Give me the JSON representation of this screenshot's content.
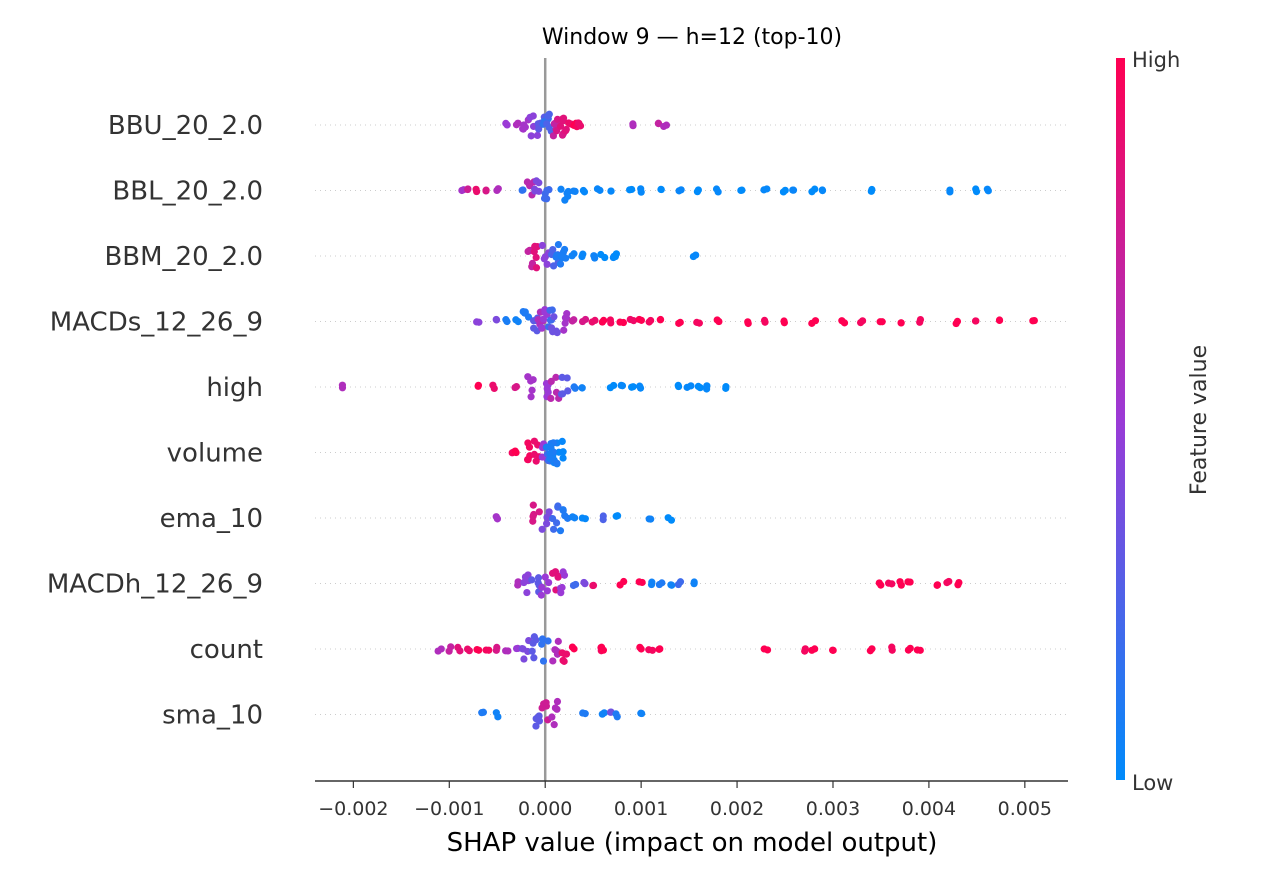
{
  "chart_data": {
    "type": "scatter",
    "subtype": "shap-beeswarm",
    "title": "Window 9 — h=12 (top-10)",
    "xlabel": "SHAP value (impact on model output)",
    "xlim": [
      -0.0024,
      0.00545
    ],
    "x_ticks": [
      -0.002,
      -0.001,
      0.0,
      0.001,
      0.002,
      0.003,
      0.004,
      0.005
    ],
    "x_tick_labels": [
      "−0.002",
      "−0.001",
      "0.000",
      "0.001",
      "0.002",
      "0.003",
      "0.004",
      "0.005"
    ],
    "zero_line": 0.0,
    "grid": false,
    "colorbar": {
      "label": "Feature value",
      "high_label": "High",
      "low_label": "Low",
      "low_color": "#008bfb",
      "high_color": "#ff0052"
    },
    "features": [
      {
        "name": "BBU_20_2.0",
        "spread": 0.7,
        "points": [
          [
            -0.0004,
            0.5
          ],
          [
            -0.0003,
            0.6
          ],
          [
            -0.0002,
            0.55
          ],
          [
            -0.00012,
            0.45
          ],
          [
            -5e-05,
            0.3
          ],
          [
            0.0,
            0.15
          ],
          [
            5e-05,
            0.25
          ],
          [
            0.0001,
            0.7
          ],
          [
            0.00015,
            0.8
          ],
          [
            0.0002,
            0.85
          ],
          [
            0.00025,
            0.9
          ],
          [
            0.0003,
            1.0
          ],
          [
            0.00032,
            1.0
          ],
          [
            0.00034,
            0.95
          ],
          [
            0.00036,
            0.9
          ],
          [
            0.0009,
            0.6
          ],
          [
            0.0012,
            0.7
          ],
          [
            0.00125,
            0.6
          ]
        ]
      },
      {
        "name": "BBL_20_2.0",
        "spread": 0.6,
        "points": [
          [
            -0.00085,
            0.55
          ],
          [
            -0.0008,
            0.75
          ],
          [
            -0.0007,
            0.9
          ],
          [
            -0.0006,
            0.8
          ],
          [
            -0.0005,
            0.6
          ],
          [
            -0.00025,
            0.15
          ],
          [
            -0.00015,
            0.65
          ],
          [
            -0.0001,
            0.4
          ],
          [
            0.0,
            0.2
          ],
          [
            0.0002,
            0.05
          ],
          [
            0.0003,
            0.05
          ],
          [
            0.0004,
            0.02
          ],
          [
            0.00055,
            0.03
          ],
          [
            0.0007,
            0.02
          ],
          [
            0.0009,
            0.0
          ],
          [
            0.001,
            0.02
          ],
          [
            0.0012,
            0.0
          ],
          [
            0.0014,
            0.03
          ],
          [
            0.0016,
            0.0
          ],
          [
            0.0018,
            0.02
          ],
          [
            0.00205,
            0.0
          ],
          [
            0.0023,
            0.02
          ],
          [
            0.0025,
            0.0
          ],
          [
            0.0026,
            0.03
          ],
          [
            0.0028,
            0.0
          ],
          [
            0.0029,
            0.02
          ],
          [
            0.0034,
            0.0
          ],
          [
            0.0042,
            0.02
          ],
          [
            0.0045,
            0.0
          ],
          [
            0.0046,
            0.02
          ]
        ]
      },
      {
        "name": "BBM_20_2.0",
        "spread": 0.75,
        "points": [
          [
            -0.00015,
            0.7
          ],
          [
            -0.0001,
            0.85
          ],
          [
            0.0,
            0.45
          ],
          [
            0.0001,
            0.25
          ],
          [
            0.00015,
            0.1
          ],
          [
            0.0002,
            0.08
          ],
          [
            0.0003,
            0.05
          ],
          [
            0.0004,
            0.03
          ],
          [
            0.0005,
            0.05
          ],
          [
            0.0006,
            0.0
          ],
          [
            0.0007,
            0.02
          ],
          [
            0.00075,
            0.0
          ],
          [
            0.00155,
            0.02
          ]
        ]
      },
      {
        "name": "MACDs_12_26_9",
        "spread": 0.7,
        "points": [
          [
            -0.0007,
            0.45
          ],
          [
            -0.0005,
            0.4
          ],
          [
            -0.0004,
            0.08
          ],
          [
            -0.0003,
            0.05
          ],
          [
            -0.0002,
            0.1
          ],
          [
            -0.0001,
            0.3
          ],
          [
            -5e-05,
            0.6
          ],
          [
            0.0,
            0.5
          ],
          [
            5e-05,
            0.2
          ],
          [
            0.0001,
            0.35
          ],
          [
            0.0002,
            0.55
          ],
          [
            0.0003,
            0.7
          ],
          [
            0.0004,
            0.8
          ],
          [
            0.0005,
            0.9
          ],
          [
            0.0006,
            1.0
          ],
          [
            0.0007,
            0.95
          ],
          [
            0.0008,
            1.0
          ],
          [
            0.0009,
            0.92
          ],
          [
            0.001,
            1.0
          ],
          [
            0.0011,
            0.95
          ],
          [
            0.0012,
            1.0
          ],
          [
            0.0014,
            1.0
          ],
          [
            0.0016,
            0.95
          ],
          [
            0.0018,
            1.0
          ],
          [
            0.0021,
            1.0
          ],
          [
            0.0023,
            0.95
          ],
          [
            0.0025,
            1.0
          ],
          [
            0.0028,
            1.0
          ],
          [
            0.0031,
            1.0
          ],
          [
            0.0033,
            0.95
          ],
          [
            0.0035,
            1.0
          ],
          [
            0.0037,
            1.0
          ],
          [
            0.0039,
            0.95
          ],
          [
            0.0043,
            1.0
          ],
          [
            0.0045,
            0.95
          ],
          [
            0.00475,
            1.0
          ],
          [
            0.0051,
            1.0
          ]
        ]
      },
      {
        "name": "high",
        "spread": 0.7,
        "points": [
          [
            -0.0021,
            0.6
          ],
          [
            -0.0007,
            1.0
          ],
          [
            -0.00055,
            0.9
          ],
          [
            -0.0003,
            0.8
          ],
          [
            -0.00015,
            0.55
          ],
          [
            0.0,
            0.5
          ],
          [
            0.0001,
            0.65
          ],
          [
            0.0002,
            0.3
          ],
          [
            0.0003,
            0.1
          ],
          [
            0.0004,
            0.05
          ],
          [
            0.0007,
            0.0
          ],
          [
            0.0008,
            0.02
          ],
          [
            0.0009,
            0.0
          ],
          [
            0.001,
            0.02
          ],
          [
            0.0014,
            0.0
          ],
          [
            0.0015,
            0.02
          ],
          [
            0.0016,
            0.0
          ],
          [
            0.0017,
            0.02
          ],
          [
            0.0019,
            0.0
          ]
        ]
      },
      {
        "name": "volume",
        "spread": 0.7,
        "points": [
          [
            -0.00035,
            0.95
          ],
          [
            -0.0003,
            1.0
          ],
          [
            -0.0002,
            0.95
          ],
          [
            -0.0001,
            0.9
          ],
          [
            0.0,
            0.5
          ],
          [
            5e-05,
            0.2
          ],
          [
            0.0001,
            0.05
          ],
          [
            0.00015,
            0.02
          ],
          [
            0.0001,
            0.1
          ],
          [
            5e-05,
            0.08
          ]
        ]
      },
      {
        "name": "ema_10",
        "spread": 0.8,
        "points": [
          [
            -0.0005,
            0.55
          ],
          [
            -0.0001,
            0.8
          ],
          [
            0.0,
            0.4
          ],
          [
            0.0001,
            0.2
          ],
          [
            0.0002,
            0.1
          ],
          [
            0.0003,
            0.05
          ],
          [
            0.0004,
            0.02
          ],
          [
            0.0006,
            0.25
          ],
          [
            0.00075,
            0.0
          ],
          [
            0.0011,
            0.05
          ],
          [
            0.0013,
            0.0
          ]
        ]
      },
      {
        "name": "MACDh_12_26_9",
        "spread": 0.7,
        "points": [
          [
            -0.0003,
            0.6
          ],
          [
            -0.0002,
            0.45
          ],
          [
            -0.0001,
            0.3
          ],
          [
            0.0,
            0.5
          ],
          [
            0.0001,
            0.85
          ],
          [
            0.0002,
            0.5
          ],
          [
            0.0003,
            0.2
          ],
          [
            0.0004,
            0.4
          ],
          [
            0.0005,
            0.9
          ],
          [
            0.0008,
            1.0
          ],
          [
            0.001,
            1.0
          ],
          [
            0.0011,
            0.05
          ],
          [
            0.0012,
            0.1
          ],
          [
            0.0013,
            0.05
          ],
          [
            0.0014,
            0.2
          ],
          [
            0.00155,
            0.05
          ],
          [
            0.0035,
            1.0
          ],
          [
            0.0036,
            0.95
          ],
          [
            0.0037,
            1.0
          ],
          [
            0.0038,
            1.0
          ],
          [
            0.0041,
            1.0
          ],
          [
            0.0042,
            0.95
          ],
          [
            0.0043,
            1.0
          ]
        ]
      },
      {
        "name": "count",
        "spread": 0.75,
        "points": [
          [
            -0.0011,
            0.6
          ],
          [
            -0.001,
            0.7
          ],
          [
            -0.0009,
            0.85
          ],
          [
            -0.0008,
            0.9
          ],
          [
            -0.0007,
            1.0
          ],
          [
            -0.0006,
            0.95
          ],
          [
            -0.0005,
            0.8
          ],
          [
            -0.0004,
            0.6
          ],
          [
            -0.0003,
            0.5
          ],
          [
            -0.0002,
            0.4
          ],
          [
            -0.0001,
            0.3
          ],
          [
            0.0,
            0.15
          ],
          [
            0.0001,
            0.6
          ],
          [
            0.0002,
            0.9
          ],
          [
            0.0003,
            1.0
          ],
          [
            0.0006,
            0.95
          ],
          [
            0.0006,
            1.0
          ],
          [
            0.001,
            1.0
          ],
          [
            0.0011,
            0.95
          ],
          [
            0.0012,
            1.0
          ],
          [
            0.0023,
            1.0
          ],
          [
            0.0027,
            0.95
          ],
          [
            0.0028,
            1.0
          ],
          [
            0.003,
            1.0
          ],
          [
            0.0034,
            1.0
          ],
          [
            0.0036,
            0.95
          ],
          [
            0.0038,
            1.0
          ],
          [
            0.0039,
            1.0
          ]
        ]
      },
      {
        "name": "sma_10",
        "spread": 0.8,
        "points": [
          [
            -0.00065,
            0.1
          ],
          [
            -0.0005,
            0.05
          ],
          [
            -0.0001,
            0.3
          ],
          [
            0.0,
            0.75
          ],
          [
            0.0001,
            0.6
          ],
          [
            0.0004,
            0.1
          ],
          [
            0.0006,
            0.05
          ],
          [
            0.0007,
            0.35
          ],
          [
            0.00075,
            0.1
          ],
          [
            0.001,
            0.05
          ]
        ]
      }
    ]
  }
}
